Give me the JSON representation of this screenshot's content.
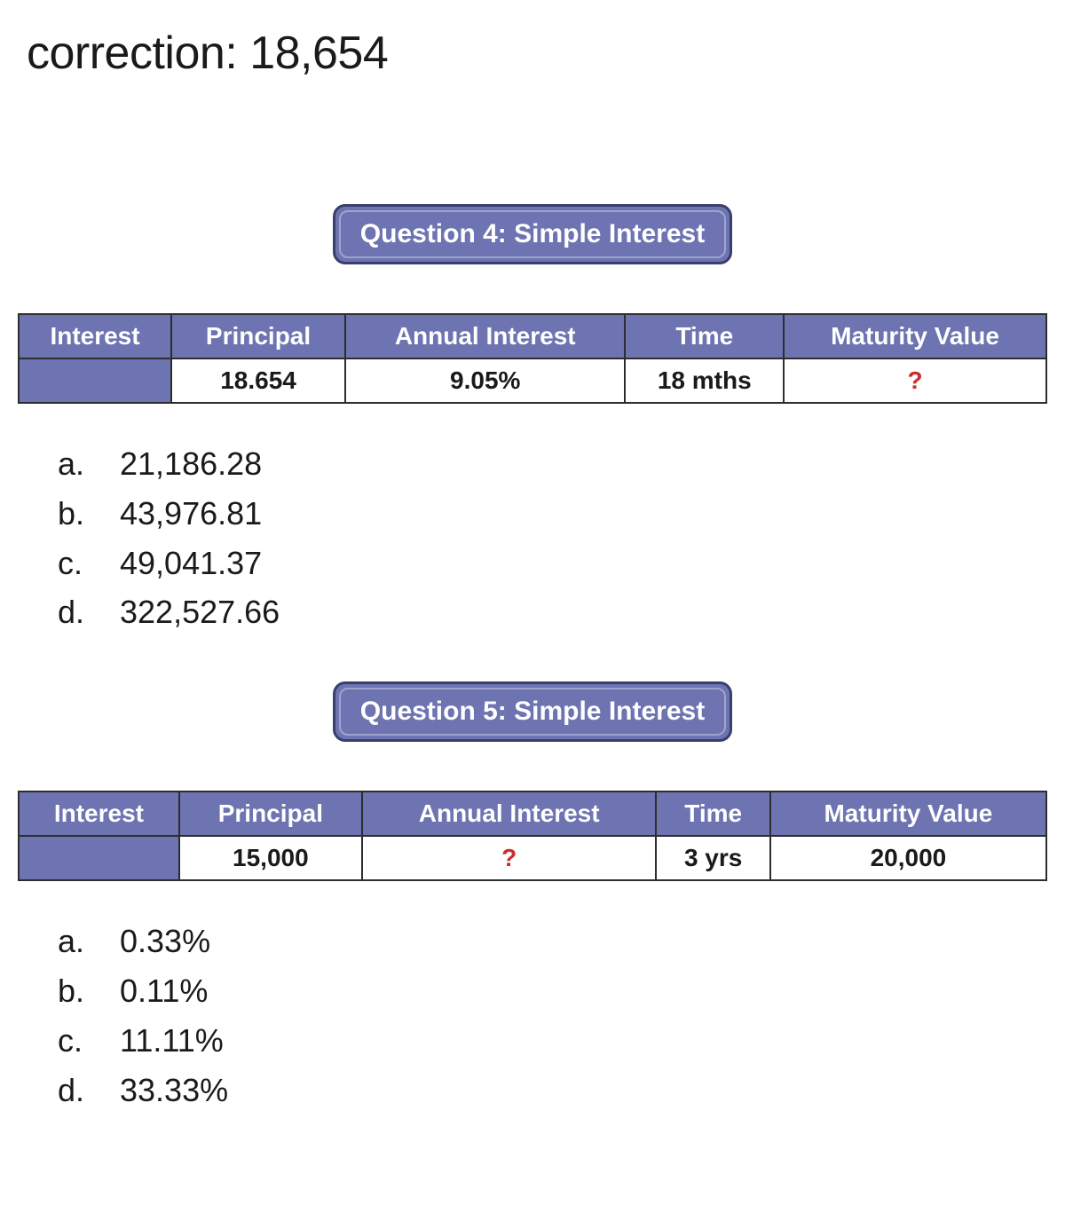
{
  "page": {
    "title": "correction: 18,654"
  },
  "colors": {
    "banner_bg": "#6d74b1",
    "banner_text": "#ffffff",
    "banner_border": "#3a3f6b",
    "table_header_bg": "#6d74b1",
    "table_header_text": "#ffffff",
    "cell_border": "#2d2d2d",
    "unknown_text": "#d02a2a",
    "body_text": "#1a1a1a",
    "background": "#ffffff"
  },
  "typography": {
    "title_fontsize": 52,
    "banner_fontsize": 30,
    "table_fontsize": 28,
    "option_fontsize": 36
  },
  "questions": [
    {
      "banner": "Question 4: Simple Interest",
      "table": {
        "headers": [
          "Interest",
          "Principal",
          "Annual Interest",
          "Time",
          "Maturity Value"
        ],
        "row": {
          "interest": "",
          "principal": "18.654",
          "annual_interest": "9.05%",
          "time": "18 mths",
          "maturity_value": "?"
        },
        "unknown_col": "maturity_value"
      },
      "options": [
        {
          "marker": "a.",
          "value": "21,186.28"
        },
        {
          "marker": "b.",
          "value": "43,976.81"
        },
        {
          "marker": "c.",
          "value": "49,041.37"
        },
        {
          "marker": "d.",
          "value": "322,527.66"
        }
      ]
    },
    {
      "banner": "Question 5: Simple Interest",
      "table": {
        "headers": [
          "Interest",
          "Principal",
          "Annual Interest",
          "Time",
          "Maturity Value"
        ],
        "row": {
          "interest": "",
          "principal": "15,000",
          "annual_interest": "?",
          "time": "3 yrs",
          "maturity_value": "20,000"
        },
        "unknown_col": "annual_interest"
      },
      "options": [
        {
          "marker": "a.",
          "value": "0.33%"
        },
        {
          "marker": "b.",
          "value": "0.11%"
        },
        {
          "marker": "c.",
          "value": "11.11%"
        },
        {
          "marker": "d.",
          "value": "33.33%"
        }
      ]
    }
  ]
}
